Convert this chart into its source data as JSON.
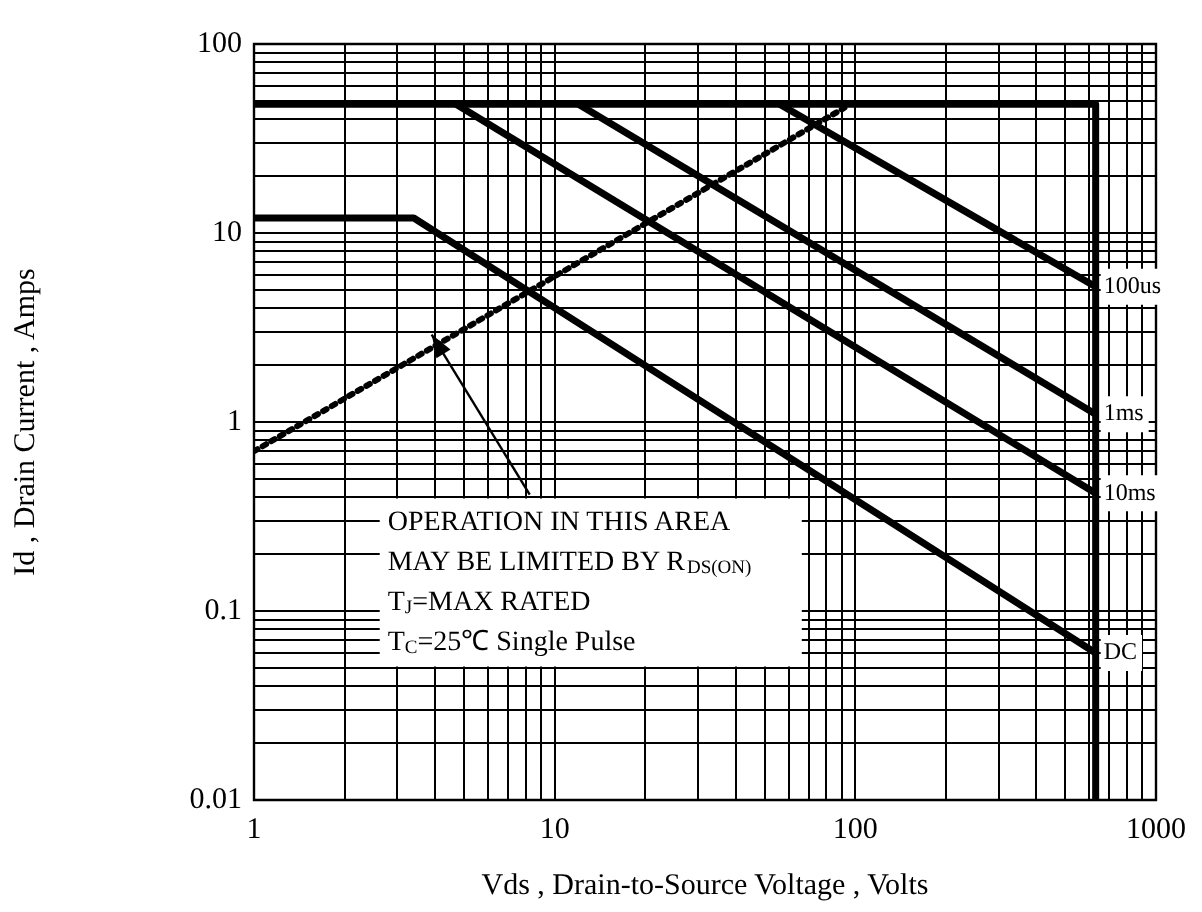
{
  "chart_data": {
    "type": "line",
    "xlabel": "Vds , Drain-to-Source Voltage , Volts",
    "ylabel": "Id , Drain Current , Amps",
    "log": "xy",
    "grid": true,
    "legend": false,
    "marker": "none",
    "line_style": "solid",
    "xlim": [
      1,
      1000
    ],
    "ylim": [
      0.01,
      100
    ],
    "xticks": [
      1,
      {
        "value": 2,
        "label": null
      },
      {
        "value": 3,
        "label": null
      },
      {
        "value": 4,
        "label": null
      },
      {
        "value": 5,
        "label": null
      },
      {
        "value": 6,
        "label": null
      },
      {
        "value": 7,
        "label": null
      },
      {
        "value": 8,
        "label": null
      },
      {
        "value": 9,
        "label": null
      },
      10,
      {
        "value": 20,
        "label": null
      },
      {
        "value": 30,
        "label": null
      },
      {
        "value": 40,
        "label": null
      },
      {
        "value": 50,
        "label": null
      },
      {
        "value": 60,
        "label": null
      },
      {
        "value": 70,
        "label": null
      },
      {
        "value": 80,
        "label": null
      },
      {
        "value": 90,
        "label": null
      },
      100,
      {
        "value": 200,
        "label": null
      },
      {
        "value": 300,
        "label": null
      },
      {
        "value": 400,
        "label": null
      },
      {
        "value": 500,
        "label": null
      },
      {
        "value": 600,
        "label": null
      },
      {
        "value": 700,
        "label": null
      },
      {
        "value": 800,
        "label": null
      },
      {
        "value": 900,
        "label": null
      },
      1000
    ],
    "yticks": [
      0.01,
      {
        "value": 0.02,
        "label": null
      },
      {
        "value": 0.03,
        "label": null
      },
      {
        "value": 0.04,
        "label": null
      },
      {
        "value": 0.05,
        "label": null
      },
      {
        "value": 0.06,
        "label": null
      },
      {
        "value": 0.07,
        "label": null
      },
      {
        "value": 0.08,
        "label": null
      },
      {
        "value": 0.09,
        "label": null
      },
      0.1,
      {
        "value": 0.2,
        "label": null
      },
      {
        "value": 0.3,
        "label": null
      },
      {
        "value": 0.4,
        "label": null
      },
      {
        "value": 0.5,
        "label": null
      },
      {
        "value": 0.6,
        "label": null
      },
      {
        "value": 0.7,
        "label": null
      },
      {
        "value": 0.8,
        "label": null
      },
      {
        "value": 0.9,
        "label": null
      },
      1,
      {
        "value": 2,
        "label": null
      },
      {
        "value": 3,
        "label": null
      },
      {
        "value": 4,
        "label": null
      },
      {
        "value": 5,
        "label": null
      },
      {
        "value": 6,
        "label": null
      },
      {
        "value": 7,
        "label": null
      },
      {
        "value": 8,
        "label": null
      },
      {
        "value": 9,
        "label": null
      },
      10,
      {
        "value": 20,
        "label": null
      },
      {
        "value": 30,
        "label": null
      },
      {
        "value": 40,
        "label": null
      },
      {
        "value": 50,
        "label": null
      },
      {
        "value": 60,
        "label": null
      },
      {
        "value": 70,
        "label": null
      },
      {
        "value": 80,
        "label": null
      },
      {
        "value": 90,
        "label": null
      },
      100
    ],
    "series": [
      {
        "color": "#000000",
        "x": [
          1,
          630
        ],
        "values": [
          48,
          48
        ]
      },
      {
        "color": "#000000",
        "x": [
          630,
          630
        ],
        "values": [
          48,
          0.01
        ]
      },
      {
        "name": "100us",
        "color": "#000000",
        "x": [
          56,
          630
        ],
        "values": [
          48,
          5.2
        ]
      },
      {
        "name": "1ms",
        "color": "#000000",
        "x": [
          12,
          630
        ],
        "values": [
          48,
          1.1
        ]
      },
      {
        "name": "10ms",
        "color": "#000000",
        "x": [
          4.7,
          630
        ],
        "values": [
          48,
          0.42
        ]
      },
      {
        "name": "DC",
        "color": "#000000",
        "x": [
          1,
          3.4,
          630
        ],
        "values": [
          12,
          12,
          0.06
        ]
      },
      {
        "color": "#000000",
        "line_style": "dotted",
        "x": [
          1,
          92
        ],
        "values": [
          0.7,
          46
        ]
      }
    ],
    "annotations": [
      {
        "text": "OPERATION IN THIS AREA",
        "x": 3.9,
        "y": 2.9
      },
      "MAY BE LIMITED BY R$_{DS(ON)}$",
      "T$_{J}$=MAX RATED",
      "T$_{C}$=25℃ Single Pulse"
    ]
  }
}
